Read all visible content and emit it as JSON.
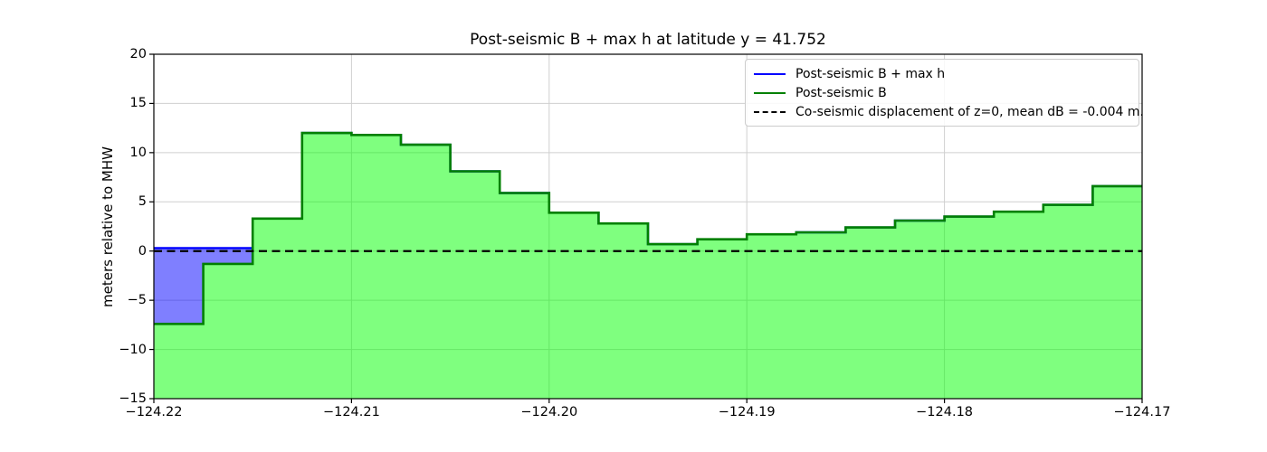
{
  "figure": {
    "title": "Post-seismic B + max h at latitude y = 41.752",
    "ylabel": "meters relative to MHW"
  },
  "legend": {
    "items": [
      {
        "label": "Post-seismic B + max h",
        "color": "#0000ff",
        "style": "solid"
      },
      {
        "label": "Post-seismic B",
        "color": "#008000",
        "style": "solid"
      },
      {
        "label": "Co-seismic displacement of z=0, mean dB = -0.004 m.",
        "color": "#000000",
        "style": "dashed"
      }
    ]
  },
  "chart_data": {
    "type": "area",
    "title": "Post-seismic B + max h at latitude y = 41.752",
    "xlabel": "",
    "ylabel": "meters relative to MHW",
    "x_step_edges_start": -124.22,
    "step_width": 0.0025,
    "n_steps": 20,
    "series": [
      {
        "name": "Post-seismic B + max h",
        "line_color": "#0000ff",
        "fill_color": "#0000ff",
        "values": [
          0.3,
          0.3,
          3.3,
          12.0,
          11.8,
          10.8,
          8.1,
          5.9,
          3.9,
          2.8,
          0.7,
          1.2,
          1.7,
          1.9,
          2.4,
          3.1,
          3.5,
          4.0,
          4.7,
          6.6
        ]
      },
      {
        "name": "Post-seismic B",
        "line_color": "#008000",
        "fill_color": "#00ff00",
        "values": [
          -7.4,
          -1.3,
          3.3,
          12.0,
          11.8,
          10.8,
          8.1,
          5.9,
          3.9,
          2.8,
          0.7,
          1.2,
          1.7,
          1.9,
          2.4,
          3.1,
          3.5,
          4.0,
          4.7,
          6.6
        ]
      }
    ],
    "zero_line": {
      "y": 0,
      "style": "dashed",
      "color": "#000000",
      "label": "Co-seismic displacement of z=0, mean dB = -0.004 m."
    },
    "xlim": [
      -124.22,
      -124.17
    ],
    "ylim": [
      -15,
      20
    ],
    "xticks": [
      -124.22,
      -124.21,
      -124.2,
      -124.19,
      -124.18,
      -124.17
    ],
    "xtick_labels": [
      "−124.22",
      "−124.21",
      "−124.20",
      "−124.19",
      "−124.18",
      "−124.17"
    ],
    "yticks": [
      -15,
      -10,
      -5,
      0,
      5,
      10,
      15,
      20
    ],
    "ytick_labels": [
      "−15",
      "−10",
      "−5",
      "0",
      "5",
      "10",
      "15",
      "20"
    ],
    "grid": true,
    "legend_position": "upper right",
    "fill_opacity": 0.5
  }
}
